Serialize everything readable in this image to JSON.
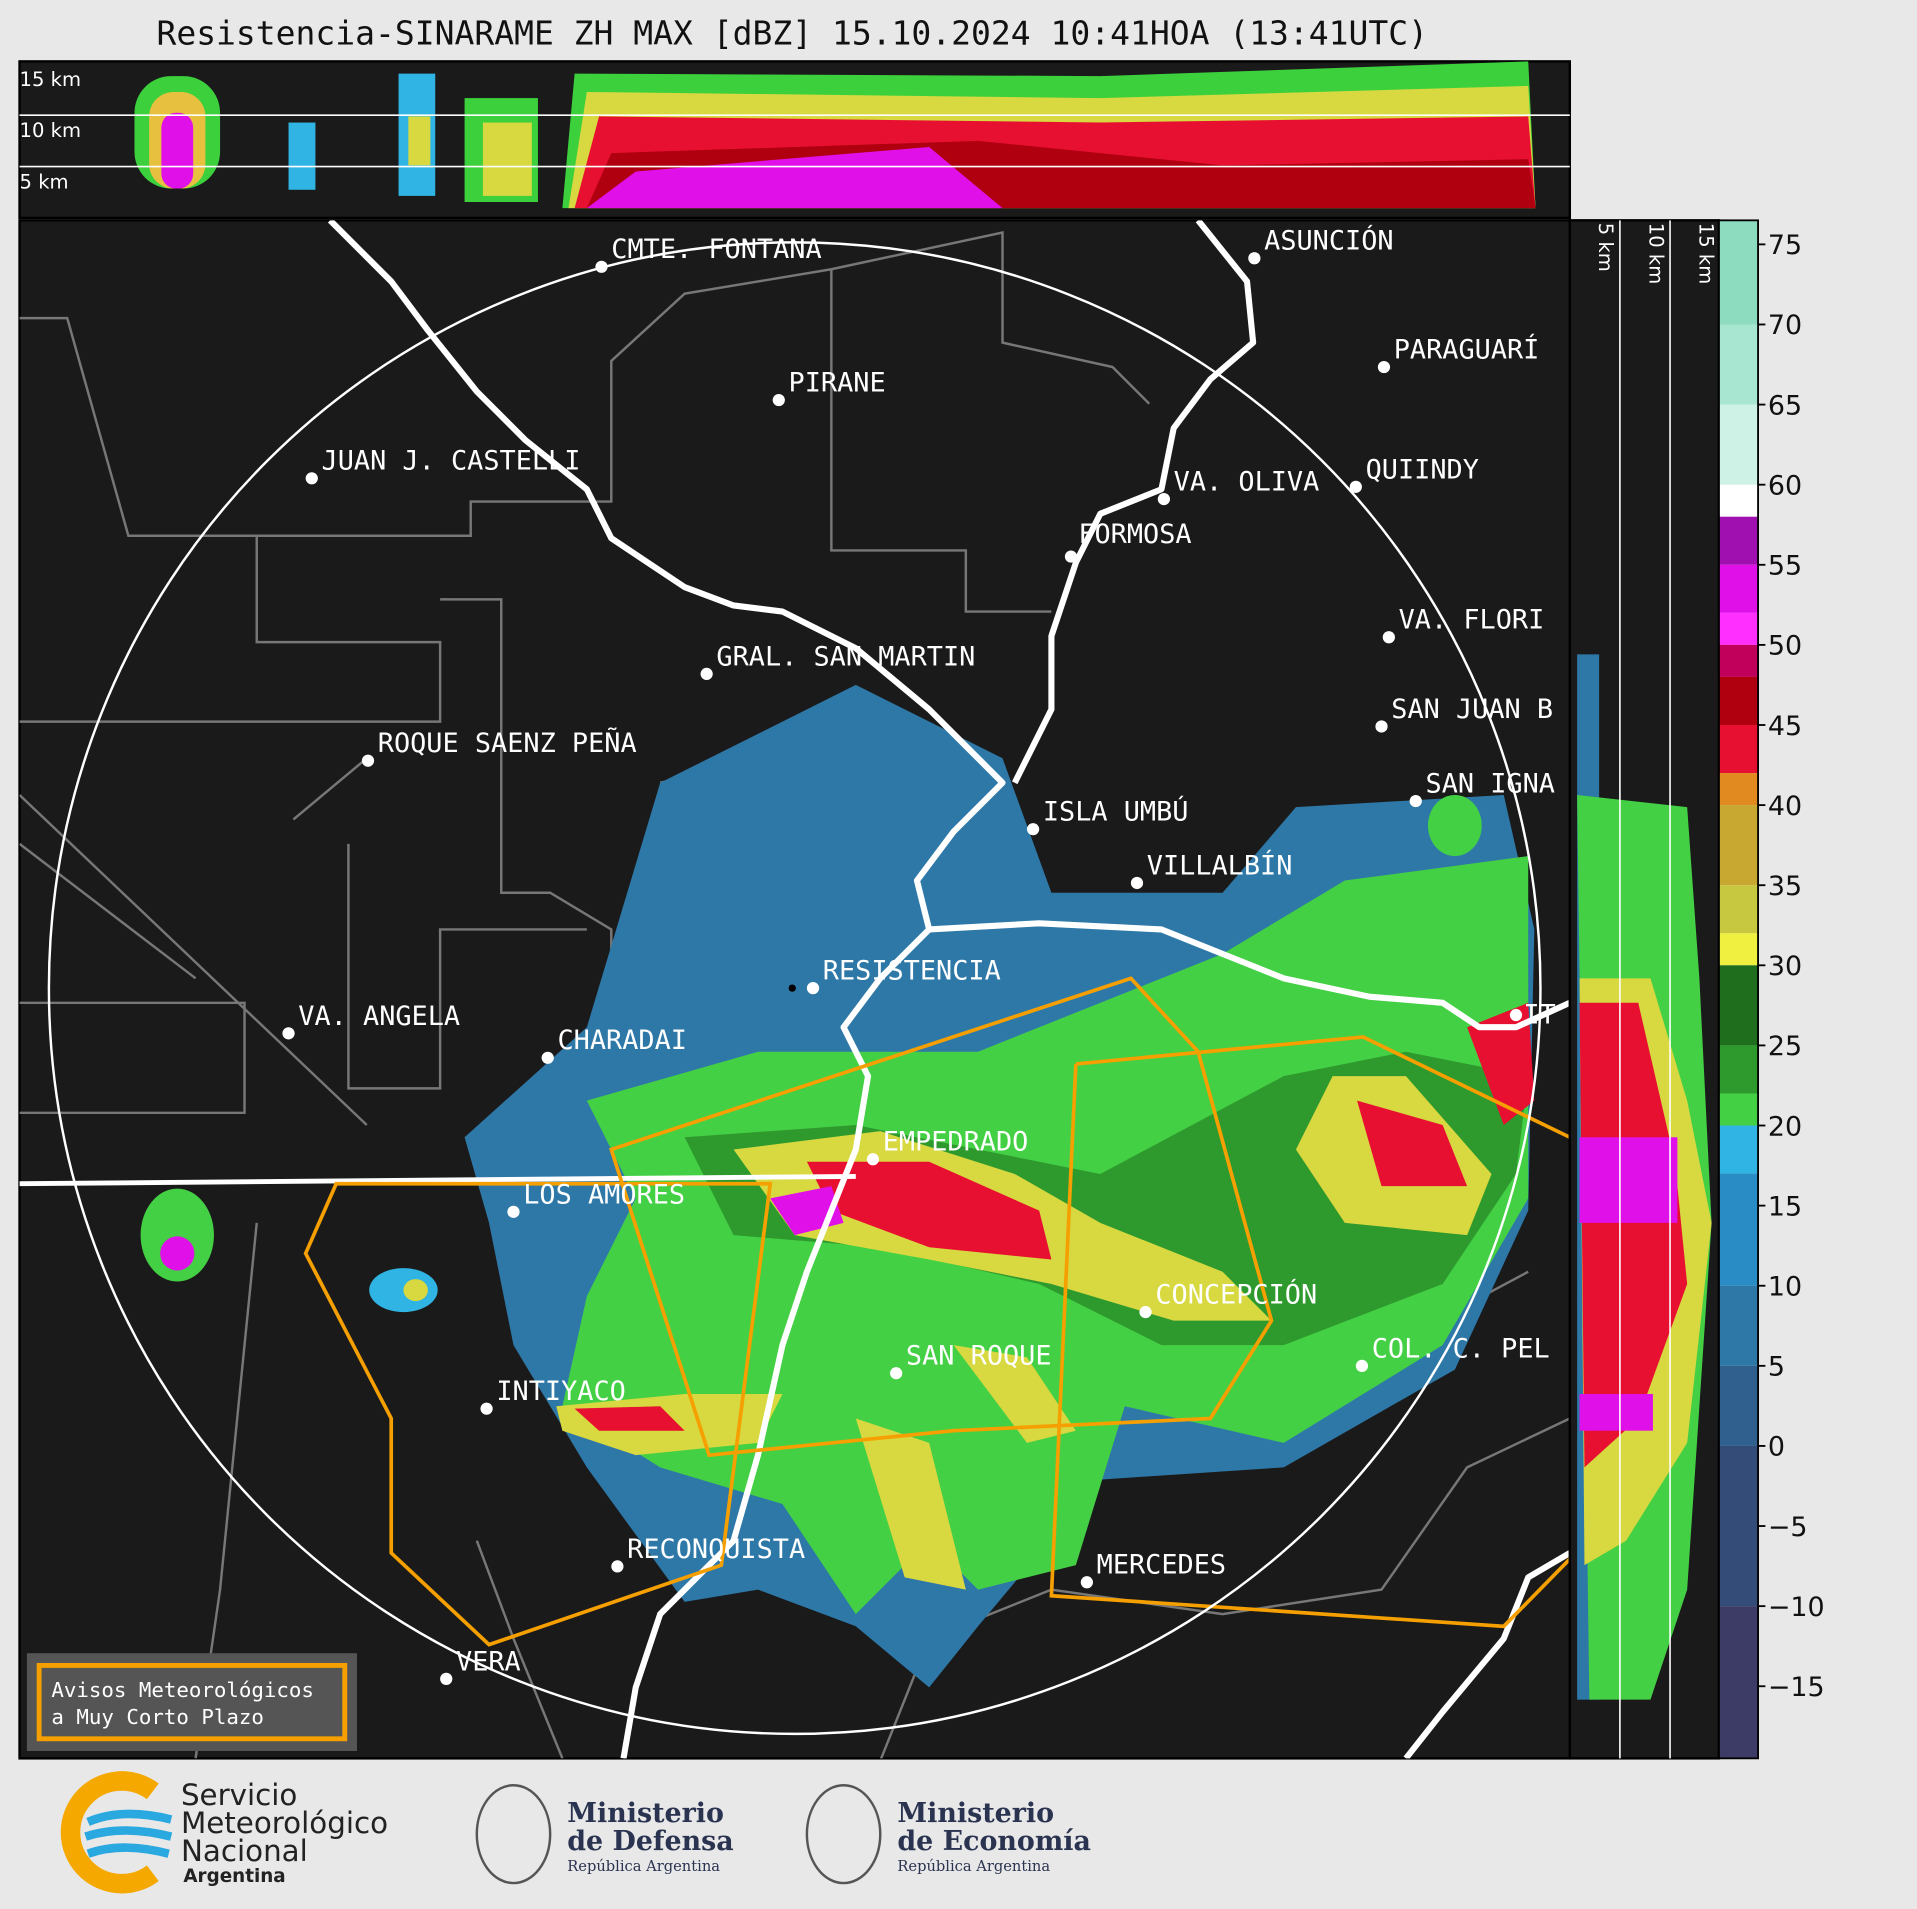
{
  "header": {
    "title": "Resistencia-SINARAME ZH MAX [dBZ] 15.10.2024 10:41HOA (13:41UTC)"
  },
  "heights": {
    "top": [
      "15 km",
      "10 km",
      "5 km"
    ],
    "side": [
      "5 km",
      "10 km",
      "15 km"
    ]
  },
  "cities": [
    "CMTE. FONTANA",
    "PIRANE",
    "JUAN J. CASTELLI",
    "ASUNCIÓN",
    "PARAGUARÍ",
    "QUIINDY",
    "VA. OLIVA",
    "FORMOSA",
    "VA. FLORI",
    "GRAL. SAN MARTIN",
    "ROQUE SAENZ PEÑA",
    "SAN JUAN B",
    "SAN IGNA",
    "ISLA UMBÚ",
    "VILLALBÍN",
    "RESISTENCIA",
    "VA. ANGELA",
    "CHARADAI",
    "IT",
    "EMPEDRADO",
    "LOS AMORES",
    "CONCEPCIÓN",
    "SAN ROQUE",
    "COL. C. PEL",
    "INTIYACO",
    "RECONQUISTA",
    "MERCEDES",
    "VERA"
  ],
  "legend": {
    "lines": [
      "Avisos Meteorológicos",
      "a Muy Corto Plazo"
    ],
    "color": "#f5a000"
  },
  "colorbar": {
    "ylim": [
      -19.5,
      76.5
    ],
    "ticks": [
      75,
      70,
      65,
      60,
      55,
      50,
      45,
      40,
      35,
      30,
      25,
      20,
      15,
      10,
      5,
      0,
      {
        "value": -5,
        "label": "−5"
      },
      {
        "value": -10,
        "label": "−10"
      },
      {
        "value": -15,
        "label": "−15"
      }
    ],
    "bands": [
      {
        "from": 70,
        "to": 76.5,
        "color": "#8edcc0"
      },
      {
        "from": 65,
        "to": 70,
        "color": "#a8e6d2"
      },
      {
        "from": 60,
        "to": 65,
        "color": "#cff2e6"
      },
      {
        "from": 58,
        "to": 60,
        "color": "#ffffff"
      },
      {
        "from": 55,
        "to": 58,
        "color": "#a010b0"
      },
      {
        "from": 52,
        "to": 55,
        "color": "#e010e8"
      },
      {
        "from": 50,
        "to": 52,
        "color": "#ff30ff"
      },
      {
        "from": 48,
        "to": 50,
        "color": "#c0005a"
      },
      {
        "from": 45,
        "to": 48,
        "color": "#b00010"
      },
      {
        "from": 42,
        "to": 45,
        "color": "#e81030"
      },
      {
        "from": 40,
        "to": 42,
        "color": "#e08a20"
      },
      {
        "from": 35,
        "to": 40,
        "color": "#c8a830"
      },
      {
        "from": 32,
        "to": 35,
        "color": "#c8c840"
      },
      {
        "from": 30,
        "to": 32,
        "color": "#f0f040"
      },
      {
        "from": 25,
        "to": 30,
        "color": "#1e6e1e"
      },
      {
        "from": 22,
        "to": 25,
        "color": "#2e9a2e"
      },
      {
        "from": 20,
        "to": 22,
        "color": "#44d044"
      },
      {
        "from": 17,
        "to": 20,
        "color": "#30b4e4"
      },
      {
        "from": 10,
        "to": 17,
        "color": "#2a8cc4"
      },
      {
        "from": 5,
        "to": 10,
        "color": "#2e78a8"
      },
      {
        "from": 0,
        "to": 5,
        "color": "#30608e"
      },
      {
        "from": -10,
        "to": 0,
        "color": "#344c78"
      },
      {
        "from": -19.5,
        "to": -10,
        "color": "#3c3c66"
      }
    ]
  },
  "logos": {
    "smn": [
      "Servicio",
      "Meteorológico",
      "Nacional",
      "Argentina"
    ],
    "defensa": [
      "Ministerio",
      "de Defensa",
      "República Argentina"
    ],
    "economia": [
      "Ministerio",
      "de Economía",
      "República Argentina"
    ]
  }
}
